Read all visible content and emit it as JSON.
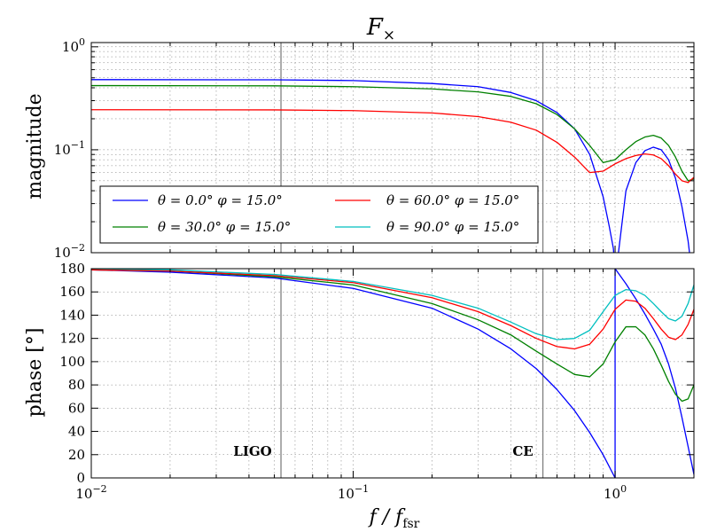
{
  "chart_data": [
    {
      "type": "line",
      "title": "F",
      "title_sub": "×",
      "xlabel": "",
      "ylabel": "magnitude",
      "xscale": "log",
      "yscale": "log",
      "xlim": [
        0.01,
        2
      ],
      "ylim": [
        0.01,
        1.1
      ],
      "yticks": [
        {
          "value": 0.01,
          "label": "10",
          "exp": "−2"
        },
        {
          "value": 0.1,
          "label": "10",
          "exp": "−1"
        },
        {
          "value": 1,
          "label": "10",
          "exp": "0"
        }
      ],
      "grid": true,
      "legend": "lower-left",
      "series": [
        {
          "name": "θ = 0.0° φ = 15.0°",
          "color": "#0000ff",
          "x": [
            0.01,
            0.05,
            0.1,
            0.2,
            0.3,
            0.4,
            0.5,
            0.6,
            0.7,
            0.8,
            0.9,
            0.95,
            0.985,
            1.0,
            1.03,
            1.1,
            1.2,
            1.3,
            1.4,
            1.5,
            1.6,
            1.7,
            1.8,
            1.9,
            1.96
          ],
          "y": [
            0.48,
            0.478,
            0.47,
            0.44,
            0.41,
            0.36,
            0.3,
            0.23,
            0.16,
            0.09,
            0.035,
            0.018,
            0.011,
            0.009,
            0.01,
            0.04,
            0.075,
            0.098,
            0.106,
            0.1,
            0.08,
            0.053,
            0.028,
            0.013,
            0.009
          ]
        },
        {
          "name": "θ = 30.0° φ = 15.0°",
          "color": "#008000",
          "x": [
            0.01,
            0.05,
            0.1,
            0.2,
            0.3,
            0.4,
            0.5,
            0.6,
            0.7,
            0.8,
            0.9,
            1.0,
            1.1,
            1.2,
            1.3,
            1.4,
            1.5,
            1.6,
            1.7,
            1.8,
            1.9,
            2.0
          ],
          "y": [
            0.42,
            0.418,
            0.41,
            0.39,
            0.365,
            0.33,
            0.28,
            0.22,
            0.16,
            0.11,
            0.075,
            0.08,
            0.1,
            0.12,
            0.133,
            0.138,
            0.13,
            0.11,
            0.085,
            0.062,
            0.05,
            0.052
          ]
        },
        {
          "name": "θ = 60.0° φ = 15.0°",
          "color": "#ff0000",
          "x": [
            0.01,
            0.05,
            0.1,
            0.2,
            0.3,
            0.4,
            0.5,
            0.6,
            0.7,
            0.8,
            0.9,
            1.0,
            1.1,
            1.2,
            1.3,
            1.4,
            1.5,
            1.6,
            1.7,
            1.8,
            1.9,
            2.0
          ],
          "y": [
            0.245,
            0.244,
            0.24,
            0.228,
            0.21,
            0.185,
            0.155,
            0.118,
            0.085,
            0.06,
            0.062,
            0.073,
            0.082,
            0.088,
            0.091,
            0.089,
            0.082,
            0.07,
            0.058,
            0.05,
            0.048,
            0.054
          ]
        },
        {
          "name": "θ = 90.0° φ = 15.0°",
          "color": "#00bfbf",
          "x": [],
          "y": []
        }
      ],
      "vlines": [
        {
          "x": 0.053,
          "label": "LIGO"
        },
        {
          "x": 0.53,
          "label": "CE"
        }
      ]
    },
    {
      "type": "line",
      "title": "",
      "xlabel": "f / f",
      "xlabel_sub": "fsr",
      "ylabel": "phase [°]",
      "xscale": "log",
      "yscale": "linear",
      "xlim": [
        0.01,
        2
      ],
      "ylim": [
        0,
        180
      ],
      "xticks": [
        {
          "value": 0.01,
          "label": "10",
          "exp": "−2"
        },
        {
          "value": 0.1,
          "label": "10",
          "exp": "−1"
        },
        {
          "value": 1,
          "label": "10",
          "exp": "0"
        }
      ],
      "yticks": [
        0,
        20,
        40,
        60,
        80,
        100,
        120,
        140,
        160,
        180
      ],
      "grid": true,
      "series": [
        {
          "name": "θ = 0.0° φ = 15.0°",
          "color": "#0000ff",
          "x": [
            0.01,
            0.02,
            0.05,
            0.1,
            0.2,
            0.3,
            0.4,
            0.5,
            0.6,
            0.7,
            0.8,
            0.9,
            1.0,
            1.0001,
            1.1,
            1.2,
            1.3,
            1.4,
            1.5,
            1.6,
            1.7,
            1.8,
            1.9,
            2.0
          ],
          "y": [
            179,
            177,
            172,
            163,
            146,
            128,
            111,
            94,
            76,
            58,
            39,
            20,
            0,
            180,
            167,
            154,
            141,
            128,
            115,
            98,
            77,
            52,
            27,
            3
          ]
        },
        {
          "name": "θ = 30.0° φ = 15.0°",
          "color": "#008000",
          "x": [
            0.01,
            0.02,
            0.05,
            0.1,
            0.2,
            0.3,
            0.4,
            0.5,
            0.6,
            0.7,
            0.8,
            0.9,
            1.0,
            1.1,
            1.2,
            1.3,
            1.4,
            1.5,
            1.6,
            1.7,
            1.8,
            1.9,
            2.0
          ],
          "y": [
            179,
            178,
            173,
            166,
            150,
            136,
            123,
            109,
            98,
            89,
            87,
            98,
            117,
            130,
            130,
            123,
            111,
            97,
            83,
            72,
            66,
            68,
            80
          ]
        },
        {
          "name": "θ = 60.0° φ = 15.0°",
          "color": "#ff0000",
          "x": [
            0.01,
            0.02,
            0.05,
            0.1,
            0.2,
            0.3,
            0.4,
            0.5,
            0.6,
            0.7,
            0.8,
            0.9,
            1.0,
            1.1,
            1.2,
            1.3,
            1.4,
            1.5,
            1.6,
            1.7,
            1.8,
            1.9,
            2.0
          ],
          "y": [
            179,
            178,
            174,
            168,
            155,
            143,
            131,
            120,
            113,
            111,
            115,
            128,
            145,
            153,
            152,
            146,
            137,
            128,
            121,
            119,
            123,
            132,
            145
          ]
        },
        {
          "name": "θ = 90.0° φ = 15.0°",
          "color": "#00bfbf",
          "x": [
            0.01,
            0.02,
            0.05,
            0.1,
            0.2,
            0.3,
            0.4,
            0.5,
            0.6,
            0.7,
            0.8,
            0.9,
            1.0,
            1.1,
            1.2,
            1.3,
            1.4,
            1.5,
            1.6,
            1.7,
            1.8,
            1.9,
            2.0
          ],
          "y": [
            180,
            179,
            175,
            169,
            157,
            146,
            134,
            124,
            119,
            120,
            127,
            143,
            157,
            162,
            161,
            157,
            150,
            143,
            137,
            135,
            139,
            150,
            166
          ]
        }
      ]
    }
  ]
}
